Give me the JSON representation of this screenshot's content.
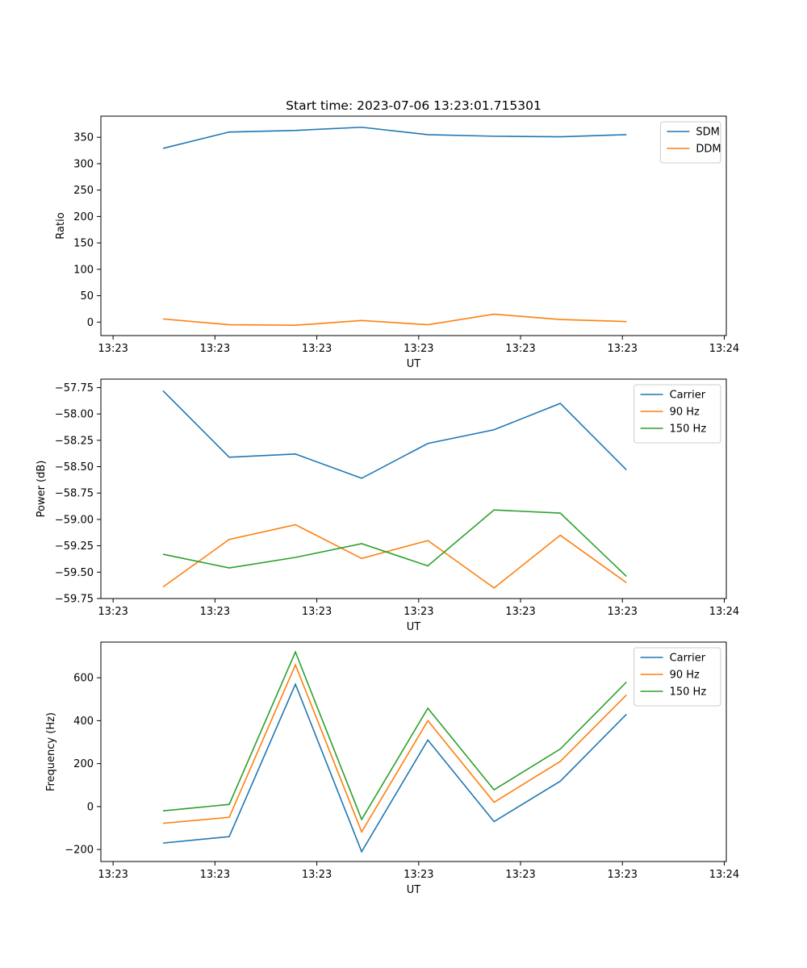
{
  "figure": {
    "title": "Start time: 2023-07-06 13:23:01.715301",
    "line_colors": {
      "blue": "#1f77b4",
      "orange": "#ff7f0e",
      "green": "#2ca02c"
    }
  },
  "chart_data": [
    {
      "type": "line",
      "title": "Start time: 2023-07-06 13:23:01.715301",
      "xlabel": "UT",
      "ylabel": "Ratio",
      "x_tick_labels": [
        "13:23",
        "13:23",
        "13:23",
        "13:23",
        "13:23",
        "13:23",
        "13:24"
      ],
      "x_ticks_seconds": [
        0,
        10,
        20,
        30,
        40,
        50,
        60
      ],
      "xlim_seconds": [
        -1.2,
        60.2
      ],
      "x_seconds": [
        4.9,
        11.4,
        17.9,
        24.4,
        30.9,
        37.4,
        43.9,
        50.4
      ],
      "ylim": [
        -25.5,
        390
      ],
      "y_ticks": [
        0,
        50,
        100,
        150,
        200,
        250,
        300,
        350
      ],
      "y_tick_labels": [
        "0",
        "50",
        "100",
        "150",
        "200",
        "250",
        "300",
        "350"
      ],
      "legend_position": "top-right",
      "grid": false,
      "series": [
        {
          "name": "SDM",
          "color": "#1f77b4",
          "values": [
            329,
            360,
            363,
            369,
            355,
            352,
            351,
            355
          ]
        },
        {
          "name": "DDM",
          "color": "#ff7f0e",
          "values": [
            6,
            -5,
            -6,
            3,
            -5,
            15,
            5,
            1
          ]
        }
      ]
    },
    {
      "type": "line",
      "title": "",
      "xlabel": "UT",
      "ylabel": "Power (dB)",
      "x_tick_labels": [
        "13:23",
        "13:23",
        "13:23",
        "13:23",
        "13:23",
        "13:23",
        "13:24"
      ],
      "x_ticks_seconds": [
        0,
        10,
        20,
        30,
        40,
        50,
        60
      ],
      "xlim_seconds": [
        -1.2,
        60.2
      ],
      "x_seconds": [
        4.9,
        11.4,
        17.9,
        24.4,
        30.9,
        37.4,
        43.9,
        50.4
      ],
      "ylim": [
        -59.75,
        -57.67
      ],
      "y_ticks": [
        -59.75,
        -59.5,
        -59.25,
        -59.0,
        -58.75,
        -58.5,
        -58.25,
        -58.0,
        -57.75
      ],
      "y_tick_labels": [
        "−59.75",
        "−59.50",
        "−59.25",
        "−59.00",
        "−58.75",
        "−58.50",
        "−58.25",
        "−58.00",
        "−57.75"
      ],
      "legend_position": "top-right",
      "grid": false,
      "series": [
        {
          "name": "Carrier",
          "color": "#1f77b4",
          "values": [
            -57.78,
            -58.41,
            -58.38,
            -58.61,
            -58.28,
            -58.15,
            -57.9,
            -58.53
          ]
        },
        {
          "name": "90 Hz",
          "color": "#ff7f0e",
          "values": [
            -59.64,
            -59.19,
            -59.05,
            -59.37,
            -59.2,
            -59.65,
            -59.15,
            -59.6
          ]
        },
        {
          "name": "150 Hz",
          "color": "#2ca02c",
          "values": [
            -59.33,
            -59.46,
            -59.36,
            -59.23,
            -59.44,
            -58.91,
            -58.94,
            -59.54
          ]
        }
      ]
    },
    {
      "type": "line",
      "title": "",
      "xlabel": "UT",
      "ylabel": "Frequency (Hz)",
      "x_tick_labels": [
        "13:23",
        "13:23",
        "13:23",
        "13:23",
        "13:23",
        "13:23",
        "13:24"
      ],
      "x_ticks_seconds": [
        0,
        10,
        20,
        30,
        40,
        50,
        60
      ],
      "xlim_seconds": [
        -1.2,
        60.2
      ],
      "x_seconds": [
        4.9,
        11.4,
        17.9,
        24.4,
        30.9,
        37.4,
        43.9,
        50.4
      ],
      "ylim": [
        -256,
        766
      ],
      "y_ticks": [
        -200,
        0,
        200,
        400,
        600
      ],
      "y_tick_labels": [
        "−200",
        "0",
        "200",
        "400",
        "600"
      ],
      "legend_position": "top-right",
      "grid": false,
      "series": [
        {
          "name": "Carrier",
          "color": "#1f77b4",
          "values": [
            -170,
            -140,
            570,
            -210,
            310,
            -70,
            118,
            430
          ]
        },
        {
          "name": "90 Hz",
          "color": "#ff7f0e",
          "values": [
            -78,
            -50,
            660,
            -118,
            400,
            20,
            210,
            520
          ]
        },
        {
          "name": "150 Hz",
          "color": "#2ca02c",
          "values": [
            -20,
            10,
            720,
            -60,
            458,
            78,
            268,
            580
          ]
        }
      ]
    }
  ]
}
